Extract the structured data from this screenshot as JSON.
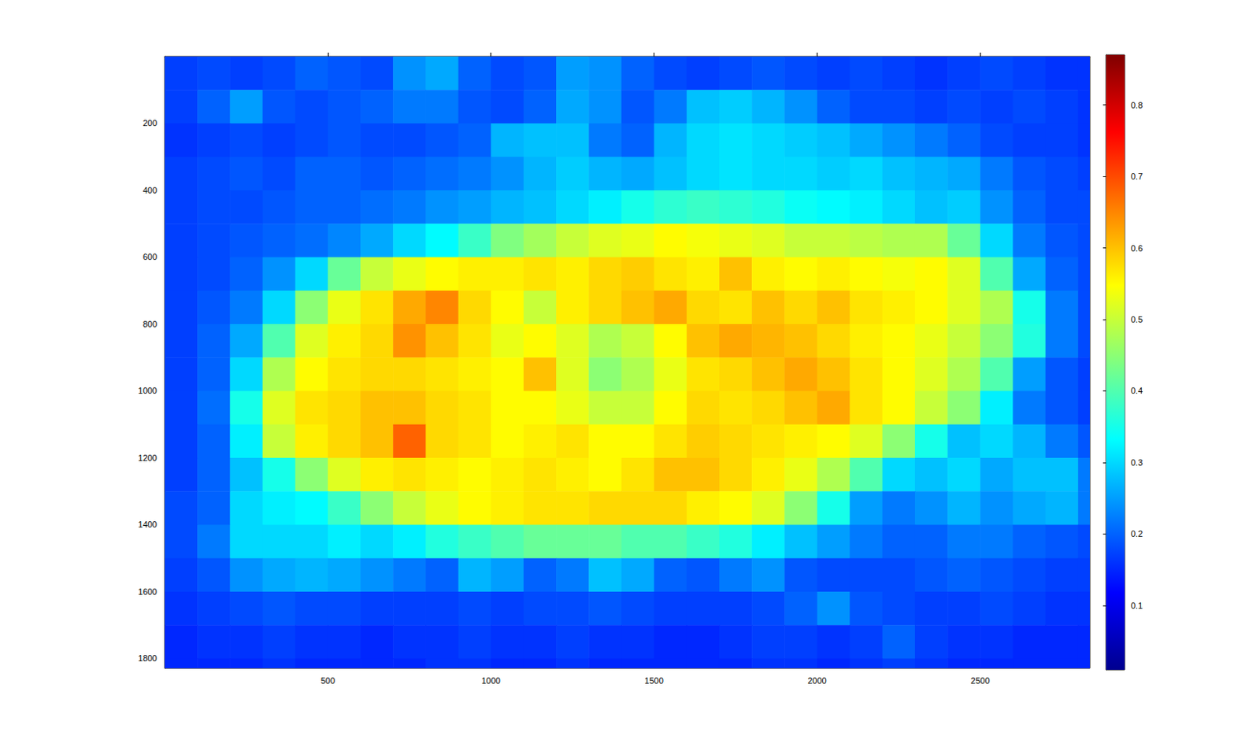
{
  "chart_data": {
    "type": "heatmap",
    "x": [
      50,
      150,
      250,
      350,
      450,
      550,
      650,
      750,
      850,
      950,
      1050,
      1150,
      1250,
      1350,
      1450,
      1550,
      1650,
      1750,
      1850,
      1950,
      2050,
      2150,
      2250,
      2350,
      2450,
      2550,
      2650,
      2750,
      2850
    ],
    "y": [
      50,
      150,
      250,
      350,
      450,
      550,
      650,
      750,
      850,
      950,
      1050,
      1150,
      1250,
      1350,
      1450,
      1550,
      1650,
      1750,
      1850
    ],
    "values": [
      [
        0.17,
        0.18,
        0.17,
        0.18,
        0.2,
        0.19,
        0.18,
        0.24,
        0.26,
        0.2,
        0.18,
        0.19,
        0.25,
        0.24,
        0.2,
        0.18,
        0.17,
        0.18,
        0.19,
        0.18,
        0.17,
        0.18,
        0.17,
        0.16,
        0.17,
        0.18,
        0.17,
        0.16,
        0.16
      ],
      [
        0.17,
        0.2,
        0.25,
        0.19,
        0.18,
        0.19,
        0.2,
        0.22,
        0.22,
        0.19,
        0.18,
        0.2,
        0.26,
        0.24,
        0.19,
        0.22,
        0.28,
        0.29,
        0.27,
        0.24,
        0.2,
        0.18,
        0.18,
        0.17,
        0.18,
        0.17,
        0.18,
        0.17,
        0.16
      ],
      [
        0.16,
        0.17,
        0.18,
        0.17,
        0.18,
        0.19,
        0.18,
        0.18,
        0.19,
        0.2,
        0.27,
        0.28,
        0.28,
        0.22,
        0.2,
        0.27,
        0.3,
        0.31,
        0.3,
        0.29,
        0.28,
        0.26,
        0.24,
        0.22,
        0.2,
        0.18,
        0.17,
        0.17,
        0.16
      ],
      [
        0.17,
        0.18,
        0.19,
        0.18,
        0.2,
        0.2,
        0.19,
        0.2,
        0.21,
        0.22,
        0.24,
        0.27,
        0.29,
        0.27,
        0.26,
        0.28,
        0.3,
        0.31,
        0.3,
        0.3,
        0.29,
        0.3,
        0.28,
        0.27,
        0.26,
        0.22,
        0.19,
        0.18,
        0.17
      ],
      [
        0.17,
        0.18,
        0.18,
        0.19,
        0.2,
        0.2,
        0.21,
        0.22,
        0.24,
        0.25,
        0.27,
        0.28,
        0.3,
        0.32,
        0.35,
        0.37,
        0.38,
        0.37,
        0.36,
        0.34,
        0.33,
        0.32,
        0.3,
        0.28,
        0.29,
        0.24,
        0.2,
        0.18,
        0.18
      ],
      [
        0.17,
        0.18,
        0.19,
        0.2,
        0.21,
        0.23,
        0.26,
        0.3,
        0.33,
        0.38,
        0.44,
        0.47,
        0.5,
        0.52,
        0.53,
        0.55,
        0.54,
        0.53,
        0.52,
        0.5,
        0.5,
        0.49,
        0.48,
        0.48,
        0.42,
        0.3,
        0.22,
        0.19,
        0.18
      ],
      [
        0.17,
        0.18,
        0.2,
        0.24,
        0.3,
        0.42,
        0.5,
        0.53,
        0.55,
        0.56,
        0.56,
        0.57,
        0.56,
        0.58,
        0.59,
        0.57,
        0.56,
        0.6,
        0.56,
        0.55,
        0.56,
        0.55,
        0.54,
        0.55,
        0.52,
        0.4,
        0.26,
        0.2,
        0.18
      ],
      [
        0.17,
        0.19,
        0.22,
        0.3,
        0.45,
        0.53,
        0.57,
        0.62,
        0.65,
        0.58,
        0.55,
        0.5,
        0.56,
        0.58,
        0.6,
        0.62,
        0.58,
        0.57,
        0.6,
        0.58,
        0.6,
        0.57,
        0.56,
        0.55,
        0.52,
        0.48,
        0.35,
        0.22,
        0.18
      ],
      [
        0.17,
        0.2,
        0.26,
        0.4,
        0.52,
        0.56,
        0.58,
        0.64,
        0.6,
        0.57,
        0.53,
        0.55,
        0.52,
        0.48,
        0.5,
        0.55,
        0.6,
        0.62,
        0.61,
        0.6,
        0.58,
        0.56,
        0.55,
        0.53,
        0.5,
        0.45,
        0.36,
        0.22,
        0.18
      ],
      [
        0.17,
        0.2,
        0.3,
        0.48,
        0.55,
        0.57,
        0.58,
        0.58,
        0.57,
        0.56,
        0.55,
        0.6,
        0.52,
        0.45,
        0.48,
        0.53,
        0.57,
        0.58,
        0.6,
        0.62,
        0.6,
        0.57,
        0.55,
        0.52,
        0.48,
        0.4,
        0.25,
        0.19,
        0.17
      ],
      [
        0.17,
        0.21,
        0.35,
        0.52,
        0.57,
        0.58,
        0.6,
        0.6,
        0.58,
        0.57,
        0.55,
        0.55,
        0.53,
        0.5,
        0.5,
        0.55,
        0.58,
        0.57,
        0.58,
        0.6,
        0.62,
        0.57,
        0.55,
        0.5,
        0.45,
        0.32,
        0.22,
        0.19,
        0.17
      ],
      [
        0.17,
        0.2,
        0.32,
        0.5,
        0.56,
        0.58,
        0.6,
        0.68,
        0.58,
        0.57,
        0.55,
        0.56,
        0.57,
        0.55,
        0.55,
        0.57,
        0.59,
        0.58,
        0.57,
        0.56,
        0.55,
        0.52,
        0.45,
        0.35,
        0.28,
        0.3,
        0.27,
        0.22,
        0.19
      ],
      [
        0.17,
        0.2,
        0.28,
        0.35,
        0.45,
        0.52,
        0.56,
        0.57,
        0.56,
        0.55,
        0.56,
        0.57,
        0.56,
        0.55,
        0.57,
        0.6,
        0.6,
        0.58,
        0.56,
        0.53,
        0.48,
        0.4,
        0.3,
        0.28,
        0.3,
        0.26,
        0.28,
        0.28,
        0.22
      ],
      [
        0.18,
        0.2,
        0.3,
        0.32,
        0.33,
        0.38,
        0.45,
        0.5,
        0.53,
        0.55,
        0.56,
        0.57,
        0.57,
        0.58,
        0.58,
        0.58,
        0.56,
        0.55,
        0.52,
        0.45,
        0.35,
        0.25,
        0.22,
        0.24,
        0.27,
        0.24,
        0.26,
        0.27,
        0.22
      ],
      [
        0.18,
        0.22,
        0.3,
        0.3,
        0.3,
        0.32,
        0.3,
        0.32,
        0.36,
        0.38,
        0.4,
        0.42,
        0.42,
        0.42,
        0.4,
        0.4,
        0.38,
        0.36,
        0.32,
        0.28,
        0.25,
        0.22,
        0.2,
        0.2,
        0.22,
        0.22,
        0.2,
        0.19,
        0.18
      ],
      [
        0.17,
        0.19,
        0.24,
        0.26,
        0.27,
        0.26,
        0.24,
        0.22,
        0.2,
        0.27,
        0.25,
        0.2,
        0.22,
        0.28,
        0.26,
        0.2,
        0.19,
        0.22,
        0.24,
        0.19,
        0.18,
        0.18,
        0.18,
        0.19,
        0.2,
        0.19,
        0.18,
        0.17,
        0.17
      ],
      [
        0.16,
        0.17,
        0.18,
        0.19,
        0.18,
        0.18,
        0.17,
        0.17,
        0.17,
        0.18,
        0.17,
        0.18,
        0.18,
        0.19,
        0.18,
        0.17,
        0.17,
        0.17,
        0.18,
        0.2,
        0.24,
        0.19,
        0.18,
        0.17,
        0.17,
        0.18,
        0.17,
        0.16,
        0.16
      ],
      [
        0.15,
        0.16,
        0.16,
        0.17,
        0.16,
        0.16,
        0.15,
        0.16,
        0.16,
        0.17,
        0.16,
        0.16,
        0.17,
        0.16,
        0.16,
        0.15,
        0.15,
        0.16,
        0.17,
        0.17,
        0.16,
        0.17,
        0.2,
        0.17,
        0.16,
        0.16,
        0.15,
        0.15,
        0.15
      ],
      [
        0.15,
        0.15,
        0.15,
        0.16,
        0.15,
        0.15,
        0.15,
        0.15,
        0.16,
        0.16,
        0.15,
        0.15,
        0.16,
        0.15,
        0.15,
        0.15,
        0.15,
        0.15,
        0.16,
        0.16,
        0.15,
        0.16,
        0.17,
        0.16,
        0.15,
        0.15,
        0.15,
        0.15,
        0.15
      ]
    ],
    "xlim": [
      0,
      2836
    ],
    "ylim": [
      0,
      1829
    ],
    "xticks": [
      500,
      1000,
      1500,
      2000,
      2500
    ],
    "yticks": [
      200,
      400,
      600,
      800,
      1000,
      1200,
      1400,
      1600,
      1800
    ],
    "colorbar": {
      "lim": [
        0.01,
        0.87
      ],
      "ticks": [
        0.1,
        0.2,
        0.3,
        0.4,
        0.5,
        0.6,
        0.7,
        0.8
      ]
    }
  }
}
